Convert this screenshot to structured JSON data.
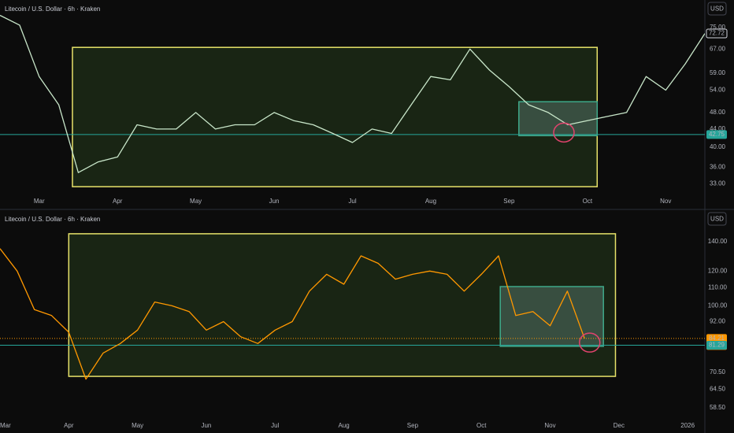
{
  "chart_data": [
    {
      "type": "line",
      "title": "Litecoin / U.S. Dollar · 6h · Kraken",
      "currency": "USD",
      "categories": [
        null,
        null,
        "Mar",
        null,
        null,
        null,
        "Apr",
        null,
        null,
        null,
        "May",
        null,
        null,
        null,
        "Jun",
        null,
        null,
        null,
        "Jul",
        null,
        null,
        null,
        "Aug",
        null,
        null,
        null,
        "Sep",
        null,
        null,
        null,
        "Oct",
        null,
        null,
        null,
        "Nov",
        null,
        null
      ],
      "values": [
        80,
        76,
        58,
        50,
        35,
        37,
        38,
        45,
        44,
        44,
        48,
        44,
        45,
        45,
        48,
        46,
        45,
        43,
        41,
        44,
        43,
        50,
        58,
        57,
        67,
        60,
        55,
        50,
        48,
        45,
        46,
        47,
        48,
        58,
        54,
        62,
        72.72
      ],
      "color": "#c8e6c9",
      "log_scale": true,
      "grid": false,
      "last_value_label": true,
      "ylim": [
        31.2,
        83.9
      ],
      "yticks": [
        {
          "value": 33,
          "label": "33.00"
        },
        {
          "value": 36,
          "label": "36.00"
        },
        {
          "value": 40,
          "label": "40.00"
        },
        {
          "value": 44,
          "label": "44.00"
        },
        {
          "value": 48,
          "label": "48.00"
        },
        {
          "value": 54,
          "label": "54.00"
        },
        {
          "value": 59,
          "label": "59.00"
        },
        {
          "value": 67,
          "label": "67.00"
        },
        {
          "value": 75,
          "label": "75.00"
        }
      ],
      "hlines": [
        {
          "value": 42.75,
          "color": "#26a69a"
        }
      ],
      "boxes": [
        {
          "x": [
            3.7,
            30.5
          ],
          "y": [
            32.5,
            67.6
          ],
          "color": "#e8e36a",
          "fill": "#1c2a16"
        },
        {
          "x": [
            26.5,
            30.5
          ],
          "y": [
            42.5,
            50.8
          ],
          "color": "#3fa98a",
          "fill": "#3e5648"
        }
      ],
      "circles": [
        {
          "x": 28.8,
          "y": 43.2,
          "color": "#e0436d"
        }
      ]
    },
    {
      "type": "line",
      "title": "Litecoin / U.S. Dollar · 6h · Kraken",
      "currency": "USD",
      "categories": [
        "Mar",
        null,
        null,
        null,
        "Apr",
        null,
        null,
        null,
        "May",
        null,
        null,
        null,
        "Jun",
        null,
        null,
        null,
        "Jul",
        null,
        null,
        null,
        "Aug",
        null,
        null,
        null,
        "Sep",
        null,
        null,
        null,
        "Oct",
        null,
        null,
        null,
        "Nov",
        null,
        null,
        null,
        "Dec",
        null,
        null,
        null,
        "2026",
        null
      ],
      "values": [
        135,
        120,
        98,
        95,
        87,
        68,
        78,
        82,
        88,
        102,
        100,
        97,
        88,
        92,
        85,
        82,
        88,
        92,
        108,
        118,
        112,
        130,
        125,
        115,
        118,
        120,
        118,
        108,
        118,
        130,
        95,
        97,
        90,
        108,
        84.21,
        null,
        null,
        null,
        null,
        null,
        null,
        null
      ],
      "color": "#ff9800",
      "log_scale": true,
      "grid": false,
      "last_value_label": false,
      "ylim": [
        55.2,
        163.2
      ],
      "yticks": [
        {
          "value": 58.5,
          "label": "58.50"
        },
        {
          "value": 64.5,
          "label": "64.50"
        },
        {
          "value": 70.5,
          "label": "70.50"
        },
        {
          "value": 92,
          "label": "92.00"
        },
        {
          "value": 100,
          "label": "100.00"
        },
        {
          "value": 110,
          "label": "110.00"
        },
        {
          "value": 120,
          "label": "120.00"
        },
        {
          "value": 140,
          "label": "140.00"
        }
      ],
      "hlines": [
        {
          "value": 84.21,
          "color": "#ff9800",
          "sublabel": "34:40"
        },
        {
          "value": 81.29,
          "color": "#26a69a"
        }
      ],
      "boxes": [
        {
          "x": [
            4.0,
            35.8
          ],
          "y": [
            69.0,
            146
          ],
          "color": "#e8e36a",
          "fill": "#1c2a16"
        },
        {
          "x": [
            29.1,
            35.1
          ],
          "y": [
            80.8,
            110.6
          ],
          "color": "#3fa98a",
          "fill": "#3e5648"
        }
      ],
      "circles": [
        {
          "x": 34.3,
          "y": 82.4,
          "color": "#e0436d"
        }
      ]
    }
  ]
}
